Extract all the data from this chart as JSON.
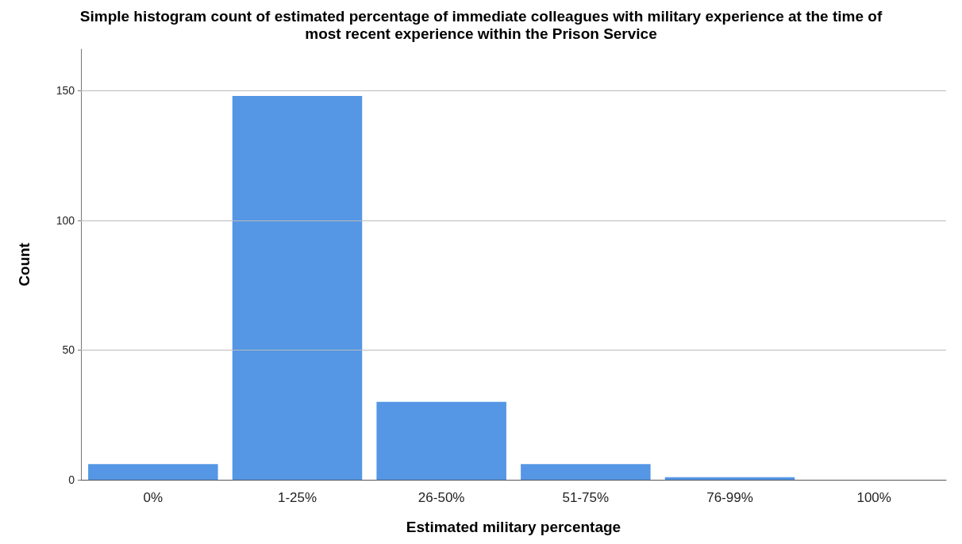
{
  "chart_data": {
    "type": "bar",
    "title": "Simple histogram count of estimated percentage of immediate colleagues with military experience at the time of\nmost recent experience within the Prison Service",
    "xlabel": "Estimated military percentage",
    "ylabel": "Count",
    "categories": [
      "0%",
      "1-25%",
      "26-50%",
      "51-75%",
      "76-99%",
      "100%"
    ],
    "values": [
      6,
      148,
      30,
      6,
      1,
      0
    ],
    "color": "#5596e5",
    "ylim": [
      0,
      166
    ],
    "yticks": [
      0,
      50,
      100,
      150
    ],
    "grid": "y"
  }
}
